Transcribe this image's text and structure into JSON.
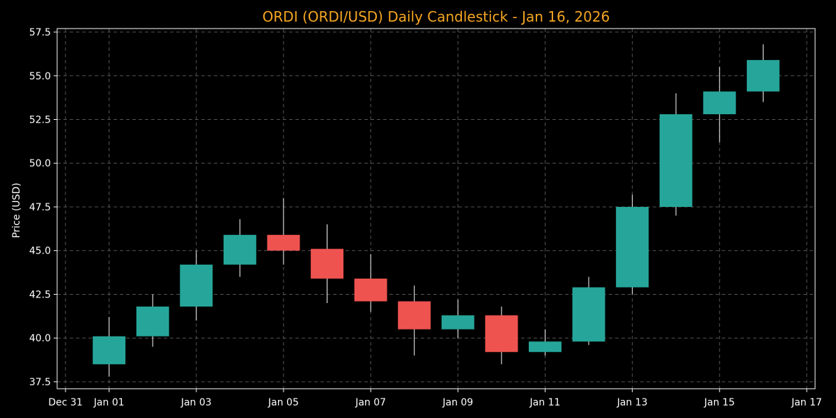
{
  "chart_data": {
    "type": "candlestick",
    "title": "ORDI (ORDI/USD) Daily Candlestick - Jan 16, 2026",
    "xlabel": "",
    "ylabel": "Price (USD)",
    "ylim": [
      37.1,
      57.7
    ],
    "y_ticks": [
      "37.5",
      "40.0",
      "42.5",
      "45.0",
      "47.5",
      "50.0",
      "52.5",
      "55.0",
      "57.5"
    ],
    "x_range": [
      "2025-12-31",
      "2026-01-17"
    ],
    "x_ticks": [
      {
        "date": "2025-12-31",
        "label": "Dec 31"
      },
      {
        "date": "2026-01-01",
        "label": "Jan 01"
      },
      {
        "date": "2026-01-03",
        "label": "Jan 03"
      },
      {
        "date": "2026-01-05",
        "label": "Jan 05"
      },
      {
        "date": "2026-01-07",
        "label": "Jan 07"
      },
      {
        "date": "2026-01-09",
        "label": "Jan 09"
      },
      {
        "date": "2026-01-11",
        "label": "Jan 11"
      },
      {
        "date": "2026-01-13",
        "label": "Jan 13"
      },
      {
        "date": "2026-01-15",
        "label": "Jan 15"
      },
      {
        "date": "2026-01-17",
        "label": "Jan 17"
      }
    ],
    "grid": true,
    "colors": {
      "up": "#26a69a",
      "down": "#ef5350",
      "title": "#f5a623",
      "background": "#000000"
    },
    "candles": [
      {
        "date": "2026-01-01",
        "open": 38.5,
        "high": 41.2,
        "low": 37.8,
        "close": 40.1
      },
      {
        "date": "2026-01-02",
        "open": 40.1,
        "high": 42.5,
        "low": 39.5,
        "close": 41.8
      },
      {
        "date": "2026-01-03",
        "open": 41.8,
        "high": 45.0,
        "low": 41.0,
        "close": 44.2
      },
      {
        "date": "2026-01-04",
        "open": 44.2,
        "high": 46.8,
        "low": 43.5,
        "close": 45.9
      },
      {
        "date": "2026-01-05",
        "open": 45.9,
        "high": 48.0,
        "low": 44.2,
        "close": 45.0
      },
      {
        "date": "2026-01-06",
        "open": 45.1,
        "high": 46.5,
        "low": 42.0,
        "close": 43.4
      },
      {
        "date": "2026-01-07",
        "open": 43.4,
        "high": 44.8,
        "low": 41.5,
        "close": 42.1
      },
      {
        "date": "2026-01-08",
        "open": 42.1,
        "high": 43.0,
        "low": 39.0,
        "close": 40.5
      },
      {
        "date": "2026-01-09",
        "open": 40.5,
        "high": 42.2,
        "low": 40.0,
        "close": 41.3
      },
      {
        "date": "2026-01-10",
        "open": 41.3,
        "high": 41.8,
        "low": 38.5,
        "close": 39.2
      },
      {
        "date": "2026-01-11",
        "open": 39.2,
        "high": 40.5,
        "low": 39.0,
        "close": 39.8
      },
      {
        "date": "2026-01-12",
        "open": 39.8,
        "high": 43.5,
        "low": 39.6,
        "close": 42.9
      },
      {
        "date": "2026-01-13",
        "open": 42.9,
        "high": 48.2,
        "low": 42.5,
        "close": 47.5
      },
      {
        "date": "2026-01-14",
        "open": 47.5,
        "high": 54.0,
        "low": 47.0,
        "close": 52.8
      },
      {
        "date": "2026-01-15",
        "open": 52.8,
        "high": 55.5,
        "low": 51.2,
        "close": 54.1
      },
      {
        "date": "2026-01-16",
        "open": 54.1,
        "high": 56.8,
        "low": 53.5,
        "close": 55.9
      }
    ]
  }
}
